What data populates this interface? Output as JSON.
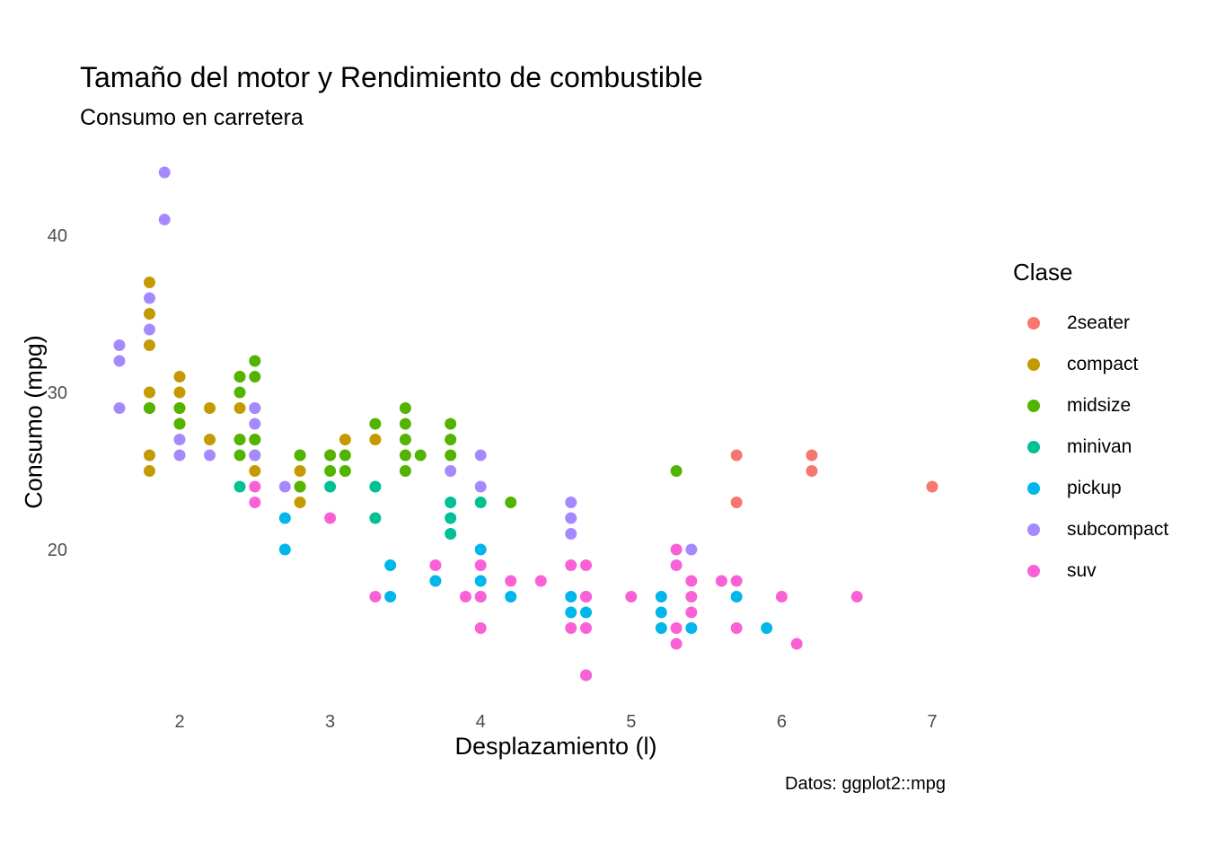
{
  "title": "Tamaño del motor y Rendimiento de combustible",
  "subtitle": "Consumo en carretera",
  "caption": "Datos: ggplot2::mpg",
  "chart_data": {
    "type": "scatter",
    "title": "Tamaño del motor y Rendimiento de combustible",
    "subtitle": "Consumo en carretera",
    "xlabel": "Desplazamiento (l)",
    "ylabel": "Consumo (mpg)",
    "xlim": [
      1.35,
      7.25
    ],
    "ylim": [
      10.4,
      45.6
    ],
    "x_ticks": [
      2,
      3,
      4,
      5,
      6,
      7
    ],
    "y_ticks": [
      20,
      30,
      40
    ],
    "grid": false,
    "legend": {
      "title": "Clase",
      "placement": "right"
    },
    "series": [
      {
        "name": "2seater",
        "color": "#F8766D",
        "points": [
          [
            5.7,
            26
          ],
          [
            5.7,
            23
          ],
          [
            6.2,
            26
          ],
          [
            6.2,
            25
          ],
          [
            7.0,
            24
          ]
        ]
      },
      {
        "name": "compact",
        "color": "#C49A00",
        "points": [
          [
            1.8,
            37
          ],
          [
            1.8,
            35
          ],
          [
            1.8,
            33
          ],
          [
            1.8,
            30
          ],
          [
            1.8,
            29
          ],
          [
            1.8,
            26
          ],
          [
            1.8,
            25
          ],
          [
            2.0,
            31
          ],
          [
            2.0,
            30
          ],
          [
            2.0,
            29
          ],
          [
            2.0,
            28
          ],
          [
            2.2,
            29
          ],
          [
            2.2,
            27
          ],
          [
            2.4,
            31
          ],
          [
            2.4,
            29
          ],
          [
            2.4,
            27
          ],
          [
            2.5,
            29
          ],
          [
            2.5,
            27
          ],
          [
            2.5,
            25
          ],
          [
            2.8,
            26
          ],
          [
            2.8,
            25
          ],
          [
            2.8,
            24
          ],
          [
            2.8,
            23
          ],
          [
            3.0,
            26
          ],
          [
            3.1,
            27
          ],
          [
            3.3,
            27
          ]
        ]
      },
      {
        "name": "midsize",
        "color": "#53B400",
        "points": [
          [
            1.8,
            29
          ],
          [
            2.0,
            29
          ],
          [
            2.0,
            28
          ],
          [
            2.4,
            31
          ],
          [
            2.4,
            30
          ],
          [
            2.4,
            27
          ],
          [
            2.4,
            26
          ],
          [
            2.5,
            32
          ],
          [
            2.5,
            31
          ],
          [
            2.5,
            27
          ],
          [
            2.5,
            26
          ],
          [
            2.8,
            26
          ],
          [
            2.8,
            24
          ],
          [
            3.0,
            26
          ],
          [
            3.0,
            25
          ],
          [
            3.1,
            26
          ],
          [
            3.1,
            25
          ],
          [
            3.3,
            28
          ],
          [
            3.5,
            29
          ],
          [
            3.5,
            28
          ],
          [
            3.5,
            27
          ],
          [
            3.5,
            26
          ],
          [
            3.5,
            25
          ],
          [
            3.6,
            26
          ],
          [
            3.8,
            28
          ],
          [
            3.8,
            27
          ],
          [
            3.8,
            26
          ],
          [
            4.2,
            23
          ],
          [
            5.3,
            25
          ]
        ]
      },
      {
        "name": "minivan",
        "color": "#00C094",
        "points": [
          [
            2.4,
            24
          ],
          [
            3.0,
            24
          ],
          [
            3.3,
            24
          ],
          [
            3.3,
            22
          ],
          [
            3.8,
            23
          ],
          [
            3.8,
            22
          ],
          [
            3.8,
            21
          ],
          [
            4.0,
            23
          ]
        ]
      },
      {
        "name": "pickup",
        "color": "#00B6EB",
        "points": [
          [
            2.7,
            22
          ],
          [
            2.7,
            20
          ],
          [
            3.4,
            19
          ],
          [
            3.4,
            17
          ],
          [
            3.7,
            18
          ],
          [
            4.0,
            20
          ],
          [
            4.0,
            18
          ],
          [
            4.0,
            17
          ],
          [
            4.2,
            17
          ],
          [
            4.6,
            17
          ],
          [
            4.6,
            16
          ],
          [
            4.7,
            17
          ],
          [
            4.7,
            16
          ],
          [
            4.7,
            12
          ],
          [
            5.2,
            17
          ],
          [
            5.2,
            16
          ],
          [
            5.2,
            15
          ],
          [
            5.4,
            15
          ],
          [
            5.7,
            17
          ],
          [
            5.9,
            15
          ]
        ]
      },
      {
        "name": "subcompact",
        "color": "#A58AFF",
        "points": [
          [
            1.6,
            33
          ],
          [
            1.6,
            32
          ],
          [
            1.6,
            29
          ],
          [
            1.8,
            36
          ],
          [
            1.8,
            34
          ],
          [
            1.9,
            44
          ],
          [
            1.9,
            41
          ],
          [
            2.0,
            27
          ],
          [
            2.0,
            26
          ],
          [
            2.2,
            26
          ],
          [
            2.5,
            29
          ],
          [
            2.5,
            28
          ],
          [
            2.5,
            26
          ],
          [
            2.7,
            24
          ],
          [
            3.8,
            25
          ],
          [
            4.0,
            26
          ],
          [
            4.0,
            24
          ],
          [
            4.6,
            23
          ],
          [
            4.6,
            22
          ],
          [
            4.6,
            21
          ],
          [
            5.4,
            20
          ]
        ]
      },
      {
        "name": "suv",
        "color": "#FB61D7",
        "points": [
          [
            2.5,
            24
          ],
          [
            2.5,
            23
          ],
          [
            3.0,
            22
          ],
          [
            3.3,
            17
          ],
          [
            3.7,
            19
          ],
          [
            3.9,
            17
          ],
          [
            4.0,
            19
          ],
          [
            4.0,
            17
          ],
          [
            4.0,
            15
          ],
          [
            4.2,
            18
          ],
          [
            4.4,
            18
          ],
          [
            4.6,
            19
          ],
          [
            4.6,
            15
          ],
          [
            4.7,
            19
          ],
          [
            4.7,
            17
          ],
          [
            4.7,
            15
          ],
          [
            4.7,
            12
          ],
          [
            5.0,
            17
          ],
          [
            5.3,
            20
          ],
          [
            5.3,
            19
          ],
          [
            5.3,
            15
          ],
          [
            5.3,
            14
          ],
          [
            5.4,
            18
          ],
          [
            5.4,
            17
          ],
          [
            5.4,
            16
          ],
          [
            5.6,
            18
          ],
          [
            5.7,
            18
          ],
          [
            5.7,
            15
          ],
          [
            6.0,
            17
          ],
          [
            6.1,
            14
          ],
          [
            6.5,
            17
          ]
        ]
      }
    ]
  }
}
